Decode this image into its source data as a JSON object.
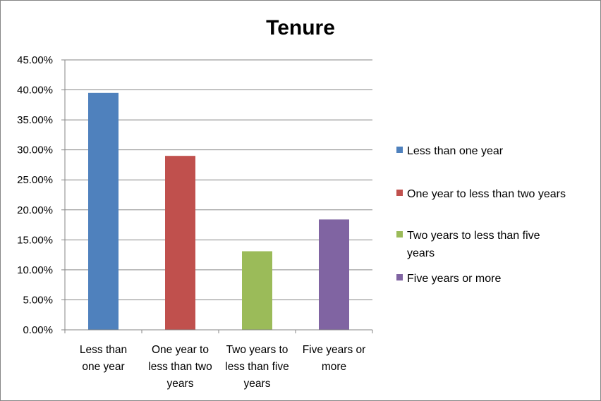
{
  "chart_data": {
    "type": "bar",
    "title": "Tenure",
    "xlabel": "",
    "ylabel": "",
    "ylim": [
      0,
      0.45
    ],
    "y_ticks": [
      "0.00%",
      "5.00%",
      "10.00%",
      "15.00%",
      "20.00%",
      "25.00%",
      "30.00%",
      "35.00%",
      "40.00%",
      "45.00%"
    ],
    "grid": true,
    "legend_position": "right",
    "categories": [
      "Less than one year",
      "One year to less than two years",
      "Two years to less than five years",
      "Five years or more"
    ],
    "category_labels_wrapped": [
      [
        "Less than",
        "one year"
      ],
      [
        "One year to",
        "less than two",
        "years"
      ],
      [
        "Two years to",
        "less than five",
        "years"
      ],
      [
        "Five years or",
        "more"
      ]
    ],
    "values": [
      0.395,
      0.29,
      0.131,
      0.184
    ],
    "colors": [
      "#4F81BD",
      "#C0504D",
      "#9BBB59",
      "#8064A2"
    ],
    "legend": [
      {
        "label_lines": [
          "Less than one year"
        ]
      },
      {
        "label_lines": [
          "One year to less than two years"
        ]
      },
      {
        "label_lines": [
          "Two years to less than five",
          "years"
        ]
      },
      {
        "label_lines": [
          "Five years or more"
        ]
      }
    ]
  }
}
